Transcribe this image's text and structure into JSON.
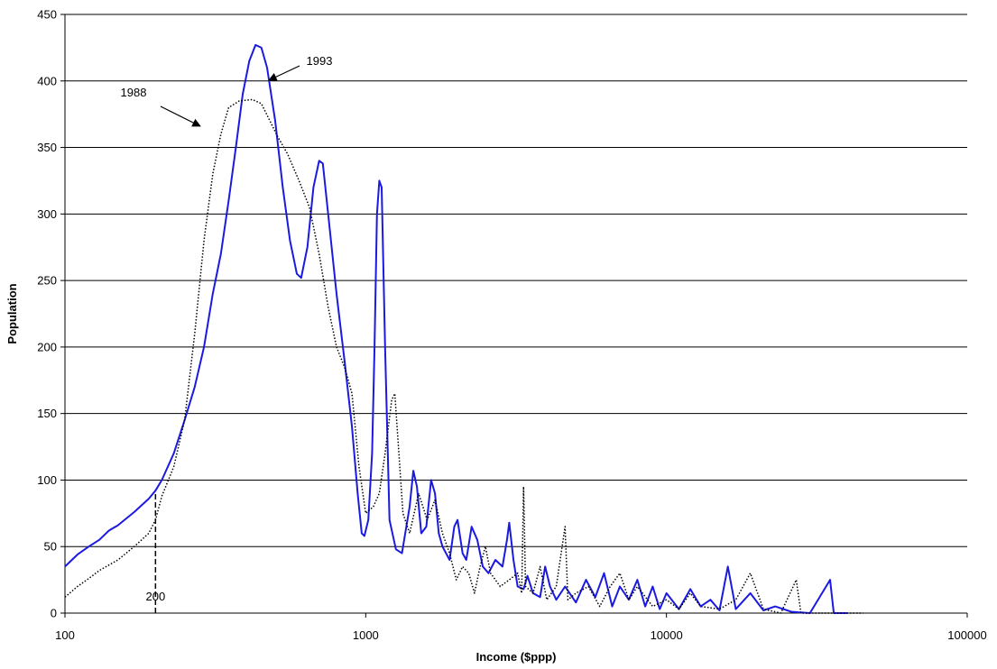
{
  "chart_data": {
    "type": "line",
    "xlabel": "Income ($ppp)",
    "ylabel": "Population",
    "xscale": "log",
    "xlim": [
      100,
      100000
    ],
    "xticks": [
      100,
      1000,
      10000,
      100000
    ],
    "ylim": [
      0,
      450
    ],
    "yticks": [
      0,
      50,
      100,
      150,
      200,
      250,
      300,
      350,
      400,
      450
    ],
    "grid": true,
    "annotations": [
      "1993",
      "1988"
    ],
    "reference_line": {
      "x": 200,
      "y": 92
    },
    "series": [
      {
        "name": "1993",
        "color": "#1a1ae0",
        "style": "solid",
        "x": [
          100,
          110,
          120,
          130,
          140,
          150,
          170,
          190,
          200,
          210,
          230,
          250,
          270,
          290,
          310,
          330,
          350,
          370,
          390,
          410,
          430,
          450,
          470,
          500,
          530,
          560,
          590,
          610,
          640,
          670,
          700,
          720,
          750,
          800,
          850,
          900,
          940,
          970,
          990,
          1020,
          1050,
          1070,
          1090,
          1110,
          1130,
          1160,
          1200,
          1260,
          1320,
          1400,
          1440,
          1480,
          1530,
          1590,
          1650,
          1700,
          1750,
          1800,
          1900,
          1970,
          2020,
          2100,
          2160,
          2250,
          2350,
          2450,
          2560,
          2700,
          2850,
          2950,
          3000,
          3100,
          3200,
          3350,
          3450,
          3600,
          3800,
          3950,
          4100,
          4300,
          4600,
          5000,
          5400,
          5800,
          6200,
          6600,
          7000,
          7500,
          8000,
          8500,
          9000,
          9500,
          10000,
          11000,
          12000,
          13000,
          14000,
          15000,
          16000,
          17000,
          19000,
          21000,
          23000,
          26000,
          30000,
          35000,
          36000,
          40000
        ],
        "values": [
          35,
          44,
          50,
          55,
          62,
          66,
          76,
          86,
          92,
          100,
          120,
          145,
          170,
          200,
          240,
          270,
          310,
          350,
          390,
          415,
          427,
          425,
          410,
          370,
          320,
          280,
          255,
          252,
          275,
          320,
          340,
          338,
          300,
          240,
          190,
          140,
          90,
          60,
          58,
          70,
          120,
          200,
          300,
          325,
          320,
          200,
          70,
          48,
          45,
          80,
          107,
          95,
          60,
          65,
          100,
          90,
          60,
          50,
          40,
          65,
          70,
          45,
          40,
          65,
          55,
          35,
          30,
          40,
          35,
          55,
          68,
          40,
          20,
          18,
          28,
          15,
          12,
          35,
          20,
          10,
          20,
          8,
          25,
          12,
          30,
          5,
          20,
          10,
          25,
          5,
          20,
          3,
          15,
          3,
          18,
          5,
          10,
          2,
          35,
          3,
          15,
          2,
          5,
          1,
          0,
          25,
          0,
          0
        ]
      },
      {
        "name": "1988",
        "color": "#000000",
        "style": "dotted",
        "x": [
          100,
          110,
          120,
          130,
          150,
          170,
          190,
          200,
          210,
          230,
          250,
          270,
          290,
          310,
          330,
          350,
          380,
          420,
          450,
          480,
          510,
          550,
          600,
          650,
          700,
          750,
          800,
          850,
          900,
          950,
          1000,
          1060,
          1110,
          1160,
          1220,
          1250,
          1280,
          1330,
          1400,
          1500,
          1600,
          1700,
          1800,
          1900,
          2000,
          2100,
          2200,
          2300,
          2400,
          2500,
          2600,
          2800,
          3000,
          3200,
          3300,
          3350,
          3400,
          3600,
          3800,
          4000,
          4300,
          4600,
          4700,
          5000,
          5500,
          6000,
          6500,
          7000,
          7500,
          8000,
          9000,
          10000,
          11000,
          12000,
          13000,
          15000,
          17000,
          19000,
          21000,
          24000,
          27000,
          28000,
          45000
        ],
        "values": [
          12,
          20,
          26,
          32,
          40,
          50,
          60,
          70,
          88,
          110,
          145,
          210,
          280,
          330,
          360,
          380,
          385,
          386,
          383,
          370,
          358,
          345,
          325,
          305,
          270,
          230,
          200,
          185,
          165,
          110,
          75,
          80,
          90,
          120,
          160,
          165,
          130,
          75,
          60,
          90,
          70,
          85,
          60,
          45,
          25,
          35,
          30,
          15,
          35,
          50,
          30,
          20,
          25,
          30,
          15,
          95,
          20,
          15,
          35,
          10,
          20,
          65,
          10,
          15,
          20,
          5,
          20,
          30,
          10,
          20,
          5,
          10,
          3,
          15,
          5,
          3,
          10,
          30,
          3,
          0,
          25,
          0,
          0
        ]
      }
    ]
  }
}
